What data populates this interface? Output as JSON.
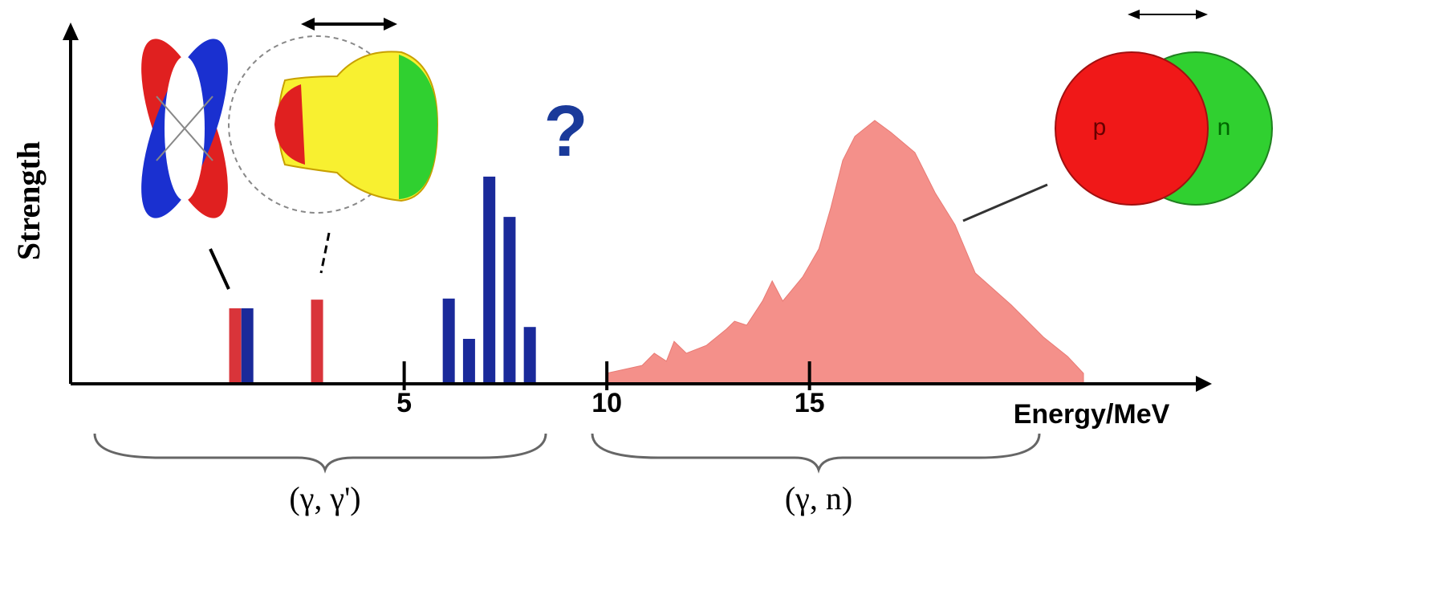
{
  "chart_data": {
    "type": "bar",
    "y_label": "Strength",
    "x_label": "Energy/MeV",
    "annotations": [
      "?",
      "(γ, γ')",
      "(γ, n)",
      "p",
      "n"
    ],
    "xlim": [
      -3.23,
      24.73
    ],
    "ylim": [
      0,
      100
    ],
    "xticks": [
      5,
      10,
      15
    ],
    "series": [
      {
        "type": "bar",
        "color": "#d9343a",
        "x": [
          0.83,
          2.85
        ],
        "values": [
          21,
          23.4
        ]
      },
      {
        "type": "bar",
        "color": "#1a2a9a",
        "x": [
          1.13,
          6.1,
          6.6,
          7.1,
          7.6,
          8.1
        ],
        "values": [
          21,
          23.7,
          12.5,
          57.6,
          46.4,
          15.8
        ]
      },
      {
        "type": "area",
        "color": "#f4908a",
        "x": [
          9.98,
          10.87,
          11.17,
          11.47,
          11.66,
          11.96,
          12.46,
          12.95,
          13.15,
          13.45,
          13.84,
          14.08,
          14.34,
          14.83,
          15.23,
          15.52,
          15.82,
          16.12,
          16.61,
          17.01,
          17.6,
          18.1,
          18.59,
          19.09,
          19.98,
          20.77,
          21.37,
          21.76
        ],
        "values": [
          2.9,
          5.1,
          8.5,
          6.3,
          11.8,
          8.5,
          10.7,
          15.2,
          17.4,
          16.3,
          23,
          28.6,
          23,
          29.7,
          37.5,
          48.7,
          62.1,
          68.8,
          73.2,
          69.9,
          64.3,
          53.1,
          44.2,
          30.8,
          21.9,
          13,
          7.6,
          2.9
        ]
      }
    ]
  }
}
